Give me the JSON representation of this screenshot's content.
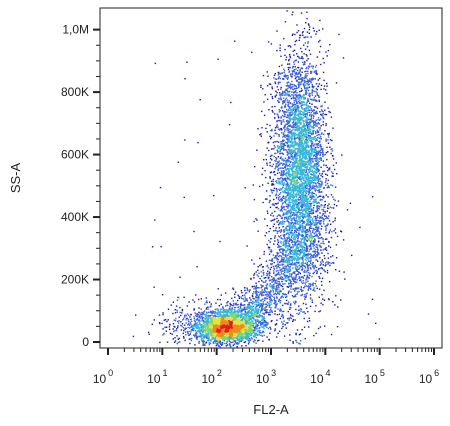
{
  "chart_data": {
    "type": "scatter",
    "style": "flow cytometry density dot plot",
    "xlabel": "FL2-A",
    "ylabel": "SS-A",
    "x_scale": "log",
    "xlim": [
      1,
      1000000
    ],
    "ylim": [
      0,
      1050000
    ],
    "x_ticks": [
      {
        "base": "10",
        "exp": "0",
        "value": 1
      },
      {
        "base": "10",
        "exp": "1",
        "value": 10
      },
      {
        "base": "10",
        "exp": "2",
        "value": 100
      },
      {
        "base": "10",
        "exp": "3",
        "value": 1000
      },
      {
        "base": "10",
        "exp": "4",
        "value": 10000
      },
      {
        "base": "10",
        "exp": "5",
        "value": 100000
      },
      {
        "base": "10",
        "exp": "6",
        "value": 1000000
      }
    ],
    "y_ticks": [
      {
        "label": "0",
        "value": 0
      },
      {
        "label": "200K",
        "value": 200000
      },
      {
        "label": "400K",
        "value": 400000
      },
      {
        "label": "600K",
        "value": 600000
      },
      {
        "label": "800K",
        "value": 800000
      },
      {
        "label": "1,0M",
        "value": 1000000
      }
    ],
    "grid": false,
    "colormap": [
      "#1a1aa0",
      "#3a5fd6",
      "#36b6d8",
      "#7fd66a",
      "#e8e23a",
      "#f08a1c",
      "#e41a1c"
    ],
    "populations": [
      {
        "center": [
          180,
          60000
        ],
        "spread": [
          80,
          25000
        ],
        "density": "high"
      },
      {
        "center": [
          2500,
          500000
        ],
        "spread": [
          1200,
          180000
        ],
        "density": "medium"
      }
    ]
  }
}
